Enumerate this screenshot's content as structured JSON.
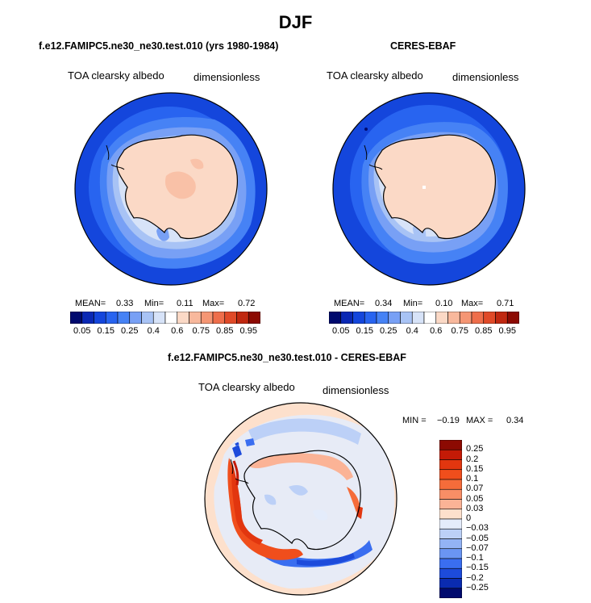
{
  "figure": {
    "title": "DJF"
  },
  "panels": [
    {
      "title": "f.e12.FAMIPC5.ne30_ne30.test.010 (yrs 1980-1984)",
      "variable": "TOA clearsky albedo",
      "units": "dimensionless",
      "mean_label": "MEAN=",
      "mean": "0.33",
      "min_label": "Min=",
      "min": "0.11",
      "max_label": "Max=",
      "max": "0.72"
    },
    {
      "title": "CERES-EBAF",
      "variable": "TOA clearsky albedo",
      "units": "dimensionless",
      "mean_label": "MEAN=",
      "mean": "0.34",
      "min_label": "Min=",
      "min": "0.10",
      "max_label": "Max=",
      "max": "0.71"
    },
    {
      "title": "f.e12.FAMIPC5.ne30_ne30.test.010 - CERES-EBAF",
      "variable": "TOA clearsky albedo",
      "units": "dimensionless",
      "min_label": "MIN =",
      "min": "−0.19",
      "max_label": "MAX =",
      "max": "0.34"
    }
  ],
  "colorbar_abs": {
    "labels": [
      "0.05",
      "0.15",
      "0.25",
      "0.4",
      "0.6",
      "0.75",
      "0.85",
      "0.95"
    ],
    "colors": [
      "#000a6e",
      "#0a28b4",
      "#1446dc",
      "#2864f0",
      "#4682f5",
      "#78a0f5",
      "#a8c3f5",
      "#d7e3f8",
      "#ffffff",
      "#fbd9c6",
      "#f8b89c",
      "#f59674",
      "#ee6e4b",
      "#e04a28",
      "#c02810",
      "#8c0a02"
    ]
  },
  "colorbar_diff": {
    "labels": [
      "0.25",
      "0.2",
      "0.15",
      "0.1",
      "0.07",
      "0.05",
      "0.03",
      "0",
      "−0.03",
      "−0.05",
      "−0.07",
      "−0.1",
      "−0.15",
      "−0.2",
      "−0.25"
    ],
    "colors": [
      "#8c0a02",
      "#c41a06",
      "#e2360f",
      "#f04e1c",
      "#f56c3a",
      "#f88e66",
      "#fbb396",
      "#fde0cc",
      "#e4ecfb",
      "#bcd0f7",
      "#93b3f5",
      "#6a95f3",
      "#3a6ef0",
      "#1d4bdb",
      "#0a2bb0",
      "#000a6e"
    ]
  }
}
